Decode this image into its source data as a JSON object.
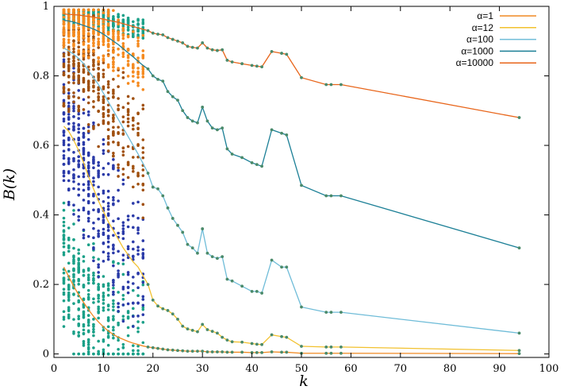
{
  "chart_data": {
    "type": "line",
    "title": "",
    "xlabel": "k",
    "ylabel": "B(k)",
    "xlim": [
      0,
      100
    ],
    "ylim": [
      -0.01,
      1.0
    ],
    "x_ticks": [
      0,
      10,
      20,
      30,
      40,
      50,
      60,
      70,
      80,
      90,
      100
    ],
    "y_ticks": [
      0,
      0.2,
      0.4,
      0.6,
      0.8,
      1
    ],
    "grid": false,
    "legend_position": "top-right",
    "x": [
      2,
      3,
      4,
      5,
      6,
      7,
      8,
      9,
      10,
      11,
      12,
      13,
      14,
      15,
      16,
      17,
      18,
      19,
      20,
      21,
      22,
      23,
      24,
      25,
      26,
      27,
      28,
      29,
      30,
      31,
      32,
      33,
      34,
      35,
      36,
      38,
      40,
      41,
      42,
      44,
      46,
      47,
      50,
      55,
      56,
      58,
      94
    ],
    "series": [
      {
        "name": "α=1",
        "color": "#f08a24",
        "values": [
          0.25,
          0.222,
          0.195,
          0.17,
          0.148,
          0.127,
          0.108,
          0.092,
          0.078,
          0.066,
          0.056,
          0.048,
          0.042,
          0.036,
          0.031,
          0.027,
          0.023,
          0.02,
          0.018,
          0.016,
          0.014,
          0.012,
          0.011,
          0.01,
          0.009,
          0.008,
          0.008,
          0.008,
          0.008,
          0.006,
          0.006,
          0.006,
          0.006,
          0.005,
          0.005,
          0.005,
          0.004,
          0.004,
          0.004,
          0.006,
          0.005,
          0.005,
          0.002,
          0.002,
          0.002,
          0.002,
          0.001
        ]
      },
      {
        "name": "α=12",
        "color": "#f2c12e",
        "values": [
          0.655,
          0.64,
          0.615,
          0.585,
          0.55,
          0.51,
          0.475,
          0.44,
          0.41,
          0.38,
          0.355,
          0.33,
          0.305,
          0.285,
          0.265,
          0.25,
          0.225,
          0.2,
          0.155,
          0.138,
          0.13,
          0.125,
          0.115,
          0.1,
          0.08,
          0.072,
          0.068,
          0.064,
          0.085,
          0.07,
          0.065,
          0.06,
          0.048,
          0.04,
          0.035,
          0.034,
          0.03,
          0.028,
          0.027,
          0.055,
          0.05,
          0.048,
          0.022,
          0.02,
          0.02,
          0.02,
          0.01
        ]
      },
      {
        "name": "α=100",
        "color": "#6fbcd8",
        "values": [
          0.88,
          0.872,
          0.862,
          0.85,
          0.835,
          0.815,
          0.795,
          0.775,
          0.75,
          0.725,
          0.7,
          0.675,
          0.65,
          0.625,
          0.6,
          0.575,
          0.548,
          0.52,
          0.48,
          0.475,
          0.455,
          0.42,
          0.39,
          0.37,
          0.35,
          0.315,
          0.305,
          0.29,
          0.36,
          0.29,
          0.28,
          0.275,
          0.28,
          0.215,
          0.21,
          0.195,
          0.18,
          0.18,
          0.175,
          0.27,
          0.25,
          0.25,
          0.135,
          0.12,
          0.12,
          0.12,
          0.06
        ]
      },
      {
        "name": "α=1000",
        "color": "#1b7f96",
        "values": [
          0.96,
          0.958,
          0.955,
          0.95,
          0.945,
          0.94,
          0.935,
          0.928,
          0.92,
          0.91,
          0.9,
          0.89,
          0.878,
          0.866,
          0.855,
          0.842,
          0.83,
          0.82,
          0.8,
          0.79,
          0.785,
          0.755,
          0.74,
          0.73,
          0.7,
          0.68,
          0.67,
          0.665,
          0.71,
          0.67,
          0.65,
          0.645,
          0.65,
          0.59,
          0.575,
          0.565,
          0.55,
          0.545,
          0.54,
          0.645,
          0.635,
          0.63,
          0.485,
          0.455,
          0.455,
          0.455,
          0.305
        ]
      },
      {
        "name": "α=10000",
        "color": "#e8651a",
        "values": [
          0.978,
          0.977,
          0.976,
          0.975,
          0.973,
          0.971,
          0.969,
          0.966,
          0.963,
          0.96,
          0.957,
          0.954,
          0.95,
          0.946,
          0.942,
          0.938,
          0.934,
          0.93,
          0.923,
          0.92,
          0.918,
          0.91,
          0.905,
          0.9,
          0.895,
          0.885,
          0.882,
          0.88,
          0.895,
          0.88,
          0.875,
          0.873,
          0.875,
          0.845,
          0.84,
          0.835,
          0.83,
          0.828,
          0.826,
          0.87,
          0.865,
          0.862,
          0.795,
          0.775,
          0.775,
          0.775,
          0.68
        ]
      }
    ],
    "scatter_series": [
      {
        "color": "#1aa088",
        "k_range": [
          2,
          18
        ],
        "values_centered_on": "α=1 and α=10000"
      },
      {
        "color": "#2a3aa8",
        "k_range": [
          2,
          18
        ],
        "values_centered_on": "α=12"
      },
      {
        "color": "#a0500f",
        "k_range": [
          2,
          18
        ],
        "values_centered_on": "α=100"
      },
      {
        "color": "#f58a1f",
        "k_range": [
          2,
          18
        ],
        "values_centered_on": "α=1000"
      }
    ]
  }
}
